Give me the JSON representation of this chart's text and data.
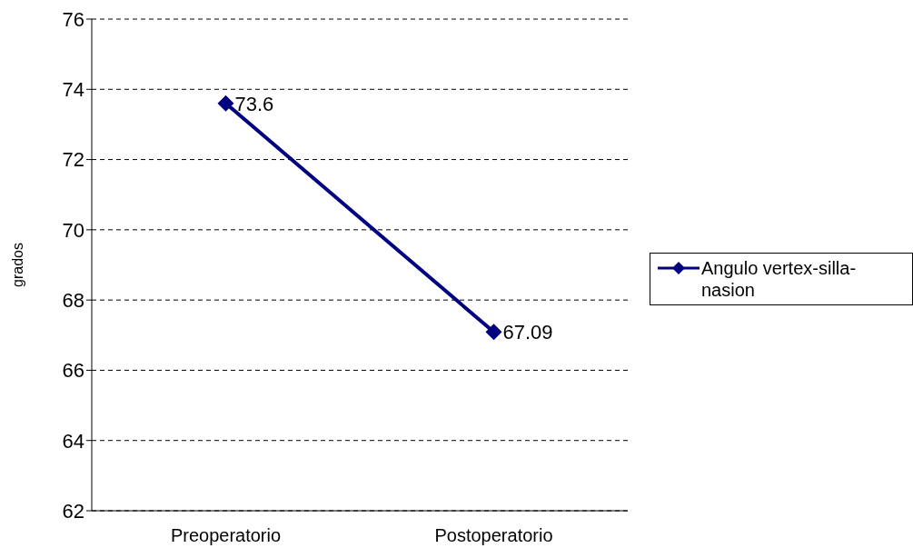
{
  "chart_data": {
    "type": "line",
    "ylabel": "grados",
    "categories": [
      "Preoperatorio",
      "Postoperatorio"
    ],
    "series": [
      {
        "name": "Angulo vertex-silla-nasion",
        "color": "#000080",
        "values": [
          73.6,
          67.09
        ]
      }
    ],
    "ylim": [
      62,
      76
    ],
    "yticks": [
      62,
      64,
      66,
      68,
      70,
      72,
      74,
      76
    ],
    "grid": "y",
    "legend": "right",
    "marker": "diamond",
    "line_style": "solid",
    "data_labels": true
  }
}
